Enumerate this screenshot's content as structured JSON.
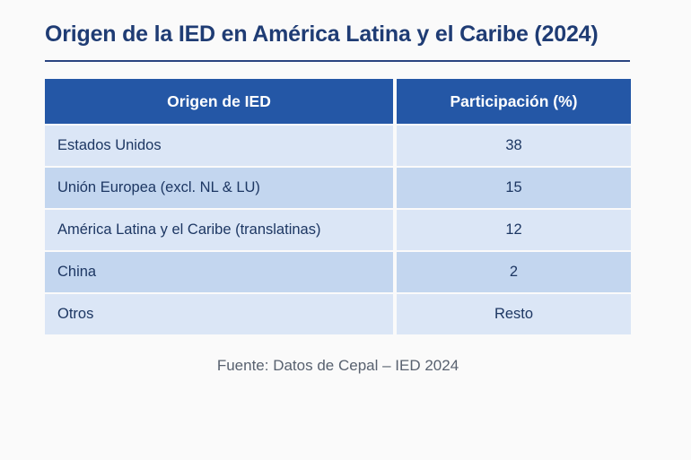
{
  "chart_data": {
    "type": "table",
    "title": "Origen de la IED en América Latina y el Caribe (2024)",
    "columns": [
      "Origen de IED",
      "Participación (%)"
    ],
    "rows": [
      [
        "Estados Unidos",
        "38"
      ],
      [
        "Unión Europea (excl. NL & LU)",
        "15"
      ],
      [
        "América Latina y el Caribe (translatinas)",
        "12"
      ],
      [
        "China",
        "2"
      ],
      [
        "Otros",
        "Resto"
      ]
    ],
    "source": "Fuente: Datos de Cepal – IED 2024",
    "layout": {
      "header_alignment": "center",
      "origin_column_alignment": "left",
      "share_column_alignment": "center",
      "row_striping": "alternating light/dark blue"
    }
  },
  "colors": {
    "header_background": "#2457a6",
    "header_text": "#ffffff",
    "row_light": "#dbe6f6",
    "row_dark": "#c3d6ef",
    "title_text": "#1f3c74",
    "cell_text": "#1d3763",
    "rule": "#2a4480",
    "footer_text": "#58616f",
    "page_background": "#fafafa"
  }
}
